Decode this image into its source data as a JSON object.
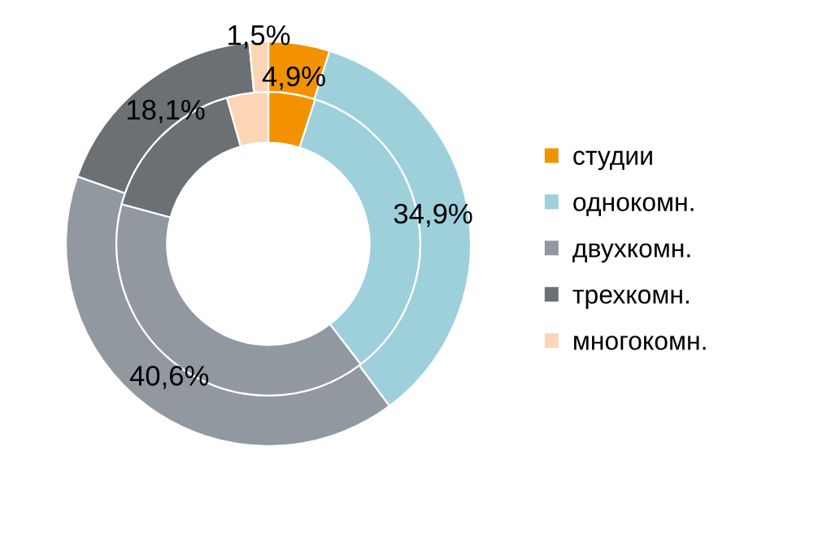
{
  "chart_data": {
    "type": "donut",
    "categories": [
      "студии",
      "однокомн.",
      "двухкомн.",
      "трехкомн.",
      "многокомн."
    ],
    "colors": [
      "#f39200",
      "#9dd0da",
      "#9198a0",
      "#6b7075",
      "#fcd5b5"
    ],
    "series": [
      {
        "values": [
          4.9,
          34.9,
          40.6,
          18.1,
          1.5
        ],
        "value_labels": [
          "4,9%",
          "34,9%",
          "40,6%",
          "18,1%",
          "1,5%"
        ]
      },
      {
        "values": [
          5.0,
          34.6,
          39.6,
          16.4,
          4.4
        ]
      }
    ],
    "legend": "right"
  }
}
